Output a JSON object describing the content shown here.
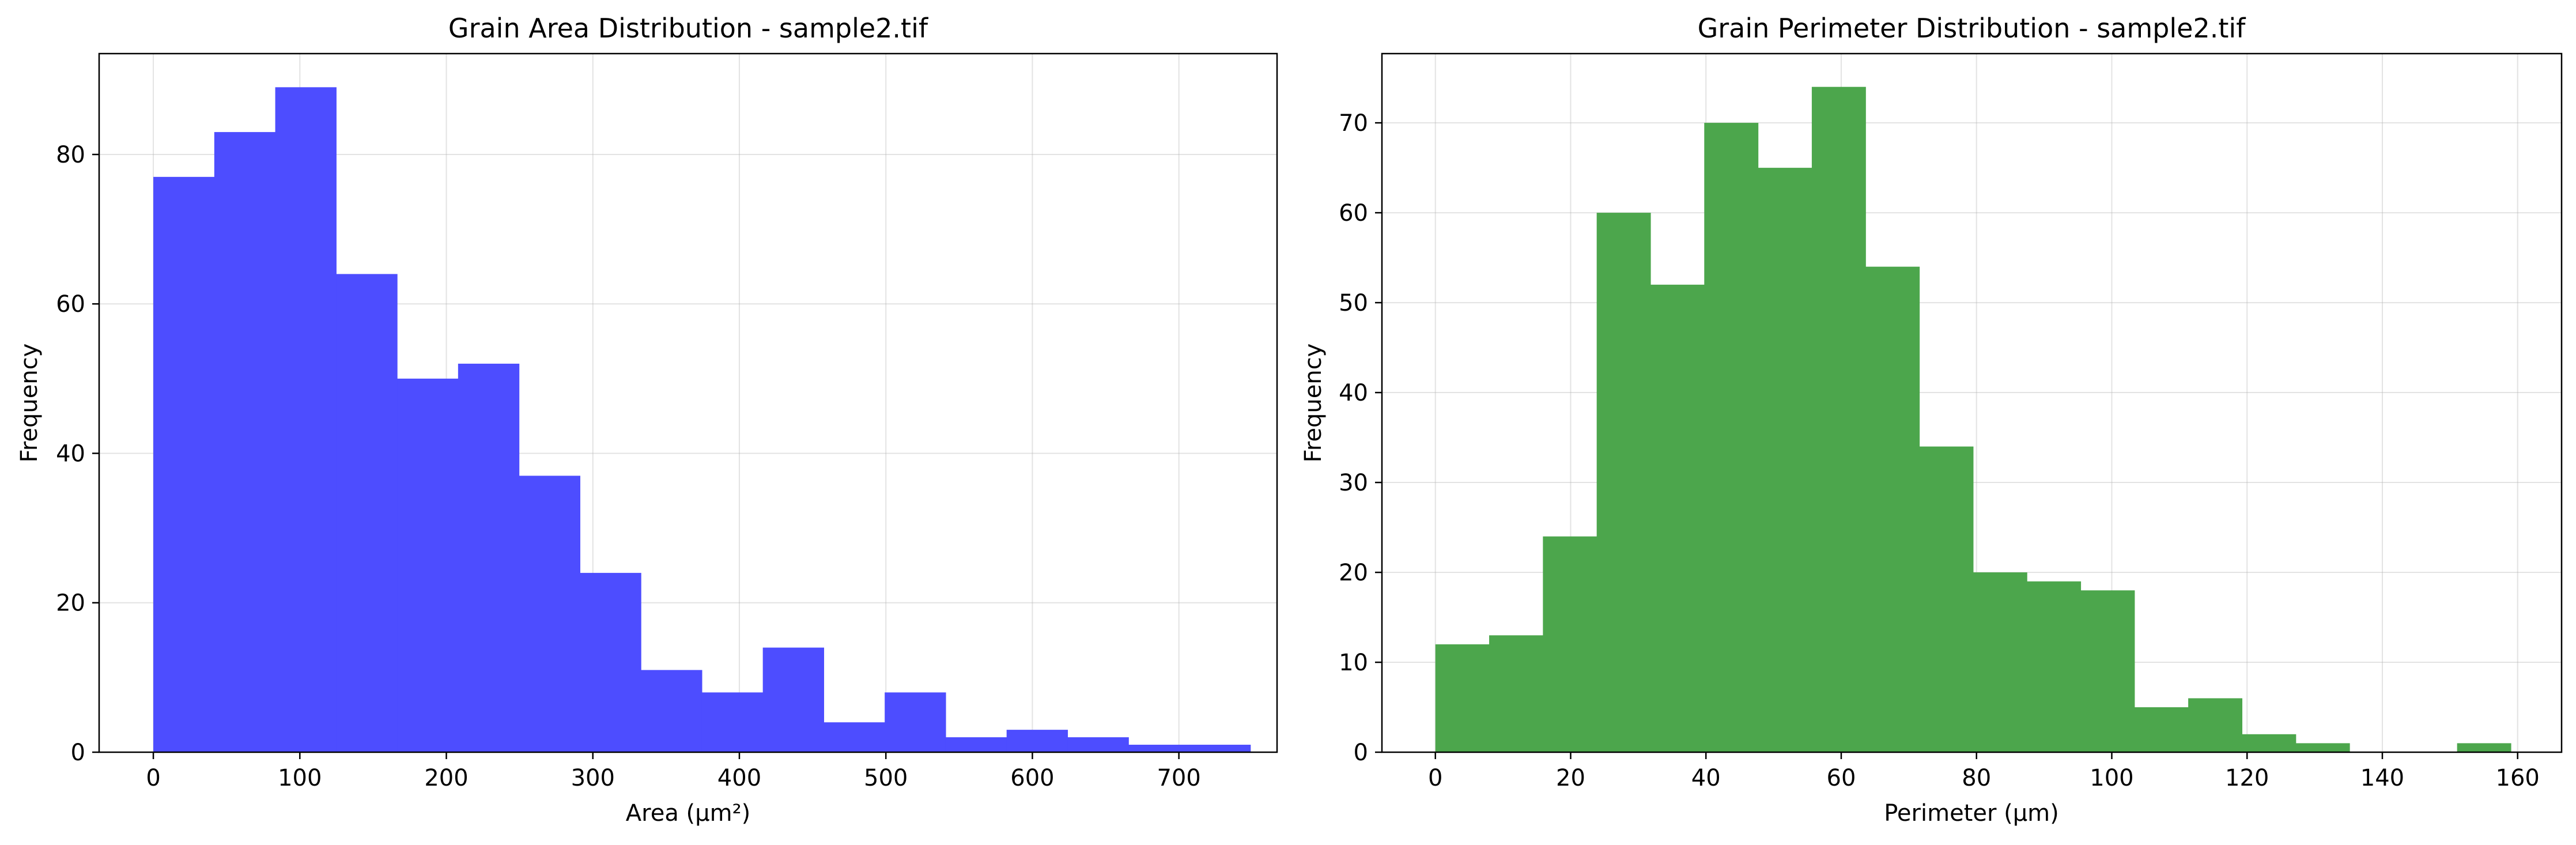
{
  "chart_data": [
    {
      "type": "bar",
      "subtype": "histogram",
      "title": "Grain Area Distribution - sample2.tif",
      "xlabel": "Area (µm²)",
      "ylabel": "Frequency",
      "xlim": [
        -37,
        767
      ],
      "ylim": [
        0,
        93.5
      ],
      "xticks": [
        0,
        100,
        200,
        300,
        400,
        500,
        600,
        700
      ],
      "yticks": [
        0,
        20,
        40,
        60,
        80
      ],
      "grid": true,
      "color": "#4d4dff",
      "bin_edges": [
        0,
        41.6,
        83.2,
        124.8,
        166.4,
        208,
        249.6,
        291.2,
        332.8,
        374.4,
        416,
        457.6,
        499.2,
        540.8,
        582.4,
        624,
        665.6,
        707.2,
        748.8
      ],
      "values": [
        77,
        83,
        89,
        64,
        50,
        52,
        37,
        24,
        11,
        8,
        14,
        4,
        8,
        2,
        3,
        2,
        1,
        1
      ]
    },
    {
      "type": "bar",
      "subtype": "histogram",
      "title": "Grain Perimeter Distribution - sample2.tif",
      "xlabel": "Perimeter (µm)",
      "ylabel": "Frequency",
      "xlim": [
        -7.9,
        166.5
      ],
      "ylim": [
        0,
        77.7
      ],
      "xticks": [
        0,
        20,
        40,
        60,
        80,
        100,
        120,
        140,
        160
      ],
      "yticks": [
        0,
        10,
        20,
        30,
        40,
        50,
        60,
        70
      ],
      "grid": true,
      "color": "#4ca64c",
      "bin_edges": [
        0,
        7.95,
        15.9,
        23.85,
        31.8,
        39.75,
        47.7,
        55.65,
        63.6,
        71.55,
        79.5,
        87.45,
        95.4,
        103.35,
        111.3,
        119.25,
        127.2,
        135.15,
        143.1,
        151.05,
        159
      ],
      "values": [
        12,
        13,
        24,
        60,
        52,
        70,
        65,
        74,
        54,
        34,
        20,
        19,
        18,
        5,
        6,
        2,
        1,
        0,
        0,
        1
      ]
    }
  ]
}
